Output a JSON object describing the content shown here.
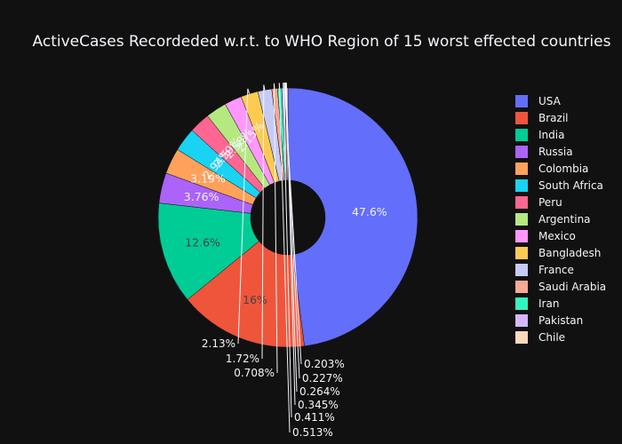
{
  "chart_data": {
    "type": "pie",
    "title": "ActiveCases Recordeded w.r.t. to WHO Region of 15 worst effected countries",
    "hole": true,
    "legend_position": "right",
    "labels": [
      "USA",
      "Brazil",
      "India",
      "Russia",
      "Colombia",
      "South Africa",
      "Peru",
      "Argentina",
      "Mexico",
      "Bangladesh",
      "France",
      "Saudi Arabia",
      "Iran",
      "Pakistan",
      "Chile"
    ],
    "values": [
      47.6,
      16,
      12.6,
      3.76,
      3.19,
      2.94,
      2.59,
      2.58,
      2.15,
      2.13,
      1.72,
      0.708,
      0.513,
      0.411,
      0.345
    ],
    "display_labels": [
      "47.6%",
      "16%",
      "12.6%",
      "3.76%",
      "3.19%",
      "2.94%",
      "2.59%",
      "2.58%",
      "2.15%",
      "2.13%",
      "1.72%",
      "0.708%",
      "0.513%",
      "0.411%",
      "0.345%"
    ],
    "colors": [
      "#636efa",
      "#EF553B",
      "#00cc96",
      "#ab63fa",
      "#FFA15A",
      "#19d3f3",
      "#FF6692",
      "#B6E880",
      "#FF97FF",
      "#FECB52",
      "#c6cbf5",
      "#f7a993",
      "#33f5c0",
      "#d5b8fc",
      "#ffd9bc"
    ],
    "extra_outside_labels": [
      "0.264%",
      "0.227%",
      "0.203%"
    ]
  }
}
